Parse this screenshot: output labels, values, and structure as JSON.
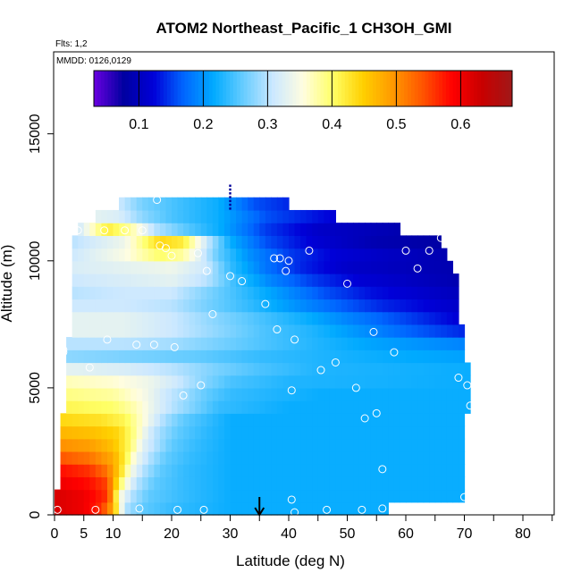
{
  "chart_data": {
    "type": "heatmap",
    "title": "ATOM2 Northeast_Pacific_1 CH3OH_GMI",
    "subtitle": "Flts: 1,2",
    "annotation": "MMDD: 0126,0129",
    "xlabel": "Latitude (deg N)",
    "ylabel": "Altitude (m)",
    "xlim": [
      0,
      85
    ],
    "ylim": [
      0,
      17500
    ],
    "x_ticks": [
      0,
      5,
      10,
      20,
      30,
      40,
      50,
      60,
      70,
      80
    ],
    "x_minor_ticks": [
      15,
      25,
      35,
      45,
      55,
      65,
      75,
      85
    ],
    "y_ticks": [
      0,
      5000,
      10000,
      15000
    ],
    "grid": false,
    "colorbar": {
      "min": 0.03,
      "max": 0.68,
      "ticks": [
        0.1,
        0.2,
        0.3,
        0.4,
        0.5,
        0.6
      ],
      "placement": "top"
    },
    "colormap": [
      "#6a00e0",
      "#0000a0",
      "#0000d8",
      "#0066ff",
      "#00aaff",
      "#66ccff",
      "#cce8ff",
      "#fffde0",
      "#ffff66",
      "#ffd000",
      "#ff9900",
      "#ff5500",
      "#ff0000",
      "#c80000",
      "#a01818"
    ],
    "levels": [
      {
        "alt": 0,
        "x_end": 57,
        "values": [
          [
            0,
            0.62
          ],
          [
            5,
            0.6
          ],
          [
            8,
            0.56
          ],
          [
            10,
            0.48
          ],
          [
            11,
            0.38
          ],
          [
            12,
            0.3
          ],
          [
            15,
            0.26
          ],
          [
            20,
            0.24
          ],
          [
            30,
            0.22
          ],
          [
            40,
            0.22
          ],
          [
            57,
            0.22
          ]
        ]
      },
      {
        "alt": 500,
        "x_end": 70,
        "values": [
          [
            0,
            0.62
          ],
          [
            5,
            0.6
          ],
          [
            9,
            0.56
          ],
          [
            10,
            0.48
          ],
          [
            11,
            0.36
          ],
          [
            13,
            0.3
          ],
          [
            16,
            0.26
          ],
          [
            22,
            0.24
          ],
          [
            30,
            0.22
          ],
          [
            70,
            0.22
          ]
        ]
      },
      {
        "alt": 1000,
        "x_end": 70,
        "values": [
          [
            1,
            0.6
          ],
          [
            6,
            0.58
          ],
          [
            9,
            0.55
          ],
          [
            10,
            0.48
          ],
          [
            12,
            0.36
          ],
          [
            14,
            0.3
          ],
          [
            17,
            0.26
          ],
          [
            22,
            0.24
          ],
          [
            30,
            0.22
          ],
          [
            70,
            0.22
          ]
        ]
      },
      {
        "alt": 1500,
        "x_end": 70,
        "values": [
          [
            1,
            0.58
          ],
          [
            6,
            0.56
          ],
          [
            9,
            0.52
          ],
          [
            11,
            0.45
          ],
          [
            13,
            0.35
          ],
          [
            15,
            0.3
          ],
          [
            18,
            0.26
          ],
          [
            22,
            0.24
          ],
          [
            30,
            0.22
          ],
          [
            70,
            0.22
          ]
        ]
      },
      {
        "alt": 2000,
        "x_end": 70,
        "values": [
          [
            1,
            0.54
          ],
          [
            6,
            0.52
          ],
          [
            10,
            0.48
          ],
          [
            12,
            0.42
          ],
          [
            14,
            0.34
          ],
          [
            16,
            0.3
          ],
          [
            19,
            0.26
          ],
          [
            23,
            0.24
          ],
          [
            30,
            0.22
          ],
          [
            70,
            0.22
          ]
        ]
      },
      {
        "alt": 2500,
        "x_end": 70,
        "values": [
          [
            1,
            0.5
          ],
          [
            6,
            0.49
          ],
          [
            10,
            0.46
          ],
          [
            13,
            0.4
          ],
          [
            15,
            0.33
          ],
          [
            17,
            0.3
          ],
          [
            20,
            0.26
          ],
          [
            24,
            0.24
          ],
          [
            30,
            0.22
          ],
          [
            70,
            0.22
          ]
        ]
      },
      {
        "alt": 3000,
        "x_end": 70,
        "values": [
          [
            1,
            0.47
          ],
          [
            7,
            0.46
          ],
          [
            11,
            0.44
          ],
          [
            14,
            0.38
          ],
          [
            16,
            0.32
          ],
          [
            18,
            0.29
          ],
          [
            21,
            0.26
          ],
          [
            25,
            0.24
          ],
          [
            30,
            0.22
          ],
          [
            70,
            0.22
          ]
        ]
      },
      {
        "alt": 3500,
        "x_end": 70,
        "values": [
          [
            1,
            0.44
          ],
          [
            8,
            0.43
          ],
          [
            12,
            0.41
          ],
          [
            15,
            0.36
          ],
          [
            17,
            0.32
          ],
          [
            19,
            0.29
          ],
          [
            22,
            0.26
          ],
          [
            26,
            0.24
          ],
          [
            30,
            0.22
          ],
          [
            70,
            0.22
          ]
        ]
      },
      {
        "alt": 4000,
        "x_end": 71,
        "values": [
          [
            2,
            0.41
          ],
          [
            10,
            0.4
          ],
          [
            14,
            0.37
          ],
          [
            17,
            0.33
          ],
          [
            20,
            0.3
          ],
          [
            24,
            0.27
          ],
          [
            28,
            0.24
          ],
          [
            40,
            0.22
          ],
          [
            71,
            0.22
          ]
        ]
      },
      {
        "alt": 4500,
        "x_end": 71,
        "values": [
          [
            2,
            0.39
          ],
          [
            10,
            0.38
          ],
          [
            15,
            0.35
          ],
          [
            19,
            0.31
          ],
          [
            22,
            0.29
          ],
          [
            26,
            0.26
          ],
          [
            30,
            0.24
          ],
          [
            45,
            0.22
          ],
          [
            71,
            0.22
          ]
        ]
      },
      {
        "alt": 5000,
        "x_end": 71,
        "values": [
          [
            2,
            0.37
          ],
          [
            10,
            0.36
          ],
          [
            16,
            0.34
          ],
          [
            21,
            0.31
          ],
          [
            25,
            0.28
          ],
          [
            30,
            0.25
          ],
          [
            40,
            0.23
          ],
          [
            71,
            0.22
          ]
        ]
      },
      {
        "alt": 5500,
        "x_end": 71,
        "values": [
          [
            2,
            0.33
          ],
          [
            12,
            0.32
          ],
          [
            20,
            0.3
          ],
          [
            28,
            0.27
          ],
          [
            35,
            0.25
          ],
          [
            45,
            0.23
          ],
          [
            71,
            0.22
          ]
        ]
      },
      {
        "alt": 6000,
        "x_end": 70,
        "values": [
          [
            2,
            0.28
          ],
          [
            15,
            0.27
          ],
          [
            25,
            0.26
          ],
          [
            35,
            0.24
          ],
          [
            45,
            0.23
          ],
          [
            55,
            0.22
          ],
          [
            70,
            0.21
          ]
        ]
      },
      {
        "alt": 6500,
        "x_end": 70,
        "values": [
          [
            2,
            0.3
          ],
          [
            12,
            0.3
          ],
          [
            20,
            0.29
          ],
          [
            28,
            0.27
          ],
          [
            36,
            0.25
          ],
          [
            45,
            0.23
          ],
          [
            55,
            0.21
          ],
          [
            70,
            0.19
          ]
        ]
      },
      {
        "alt": 7000,
        "x_end": 70,
        "values": [
          [
            3,
            0.33
          ],
          [
            12,
            0.33
          ],
          [
            20,
            0.31
          ],
          [
            28,
            0.28
          ],
          [
            36,
            0.25
          ],
          [
            44,
            0.23
          ],
          [
            52,
            0.2
          ],
          [
            60,
            0.17
          ],
          [
            70,
            0.14
          ]
        ]
      },
      {
        "alt": 7500,
        "x_end": 69,
        "values": [
          [
            3,
            0.33
          ],
          [
            12,
            0.33
          ],
          [
            20,
            0.31
          ],
          [
            27,
            0.28
          ],
          [
            35,
            0.25
          ],
          [
            43,
            0.22
          ],
          [
            50,
            0.19
          ],
          [
            58,
            0.16
          ],
          [
            69,
            0.12
          ]
        ]
      },
      {
        "alt": 8000,
        "x_end": 69,
        "values": [
          [
            3,
            0.31
          ],
          [
            12,
            0.31
          ],
          [
            20,
            0.3
          ],
          [
            26,
            0.27
          ],
          [
            33,
            0.24
          ],
          [
            41,
            0.2
          ],
          [
            48,
            0.17
          ],
          [
            56,
            0.14
          ],
          [
            69,
            0.11
          ]
        ]
      },
      {
        "alt": 8500,
        "x_end": 69,
        "values": [
          [
            3,
            0.3
          ],
          [
            12,
            0.31
          ],
          [
            20,
            0.31
          ],
          [
            25,
            0.28
          ],
          [
            32,
            0.24
          ],
          [
            39,
            0.2
          ],
          [
            46,
            0.16
          ],
          [
            54,
            0.13
          ],
          [
            69,
            0.1
          ]
        ]
      },
      {
        "alt": 9000,
        "x_end": 69,
        "values": [
          [
            3,
            0.31
          ],
          [
            12,
            0.32
          ],
          [
            20,
            0.33
          ],
          [
            26,
            0.3
          ],
          [
            31,
            0.24
          ],
          [
            37,
            0.19
          ],
          [
            44,
            0.15
          ],
          [
            52,
            0.12
          ],
          [
            69,
            0.09
          ]
        ]
      },
      {
        "alt": 9500,
        "x_end": 68,
        "values": [
          [
            3,
            0.32
          ],
          [
            12,
            0.33
          ],
          [
            20,
            0.34
          ],
          [
            26,
            0.31
          ],
          [
            30,
            0.24
          ],
          [
            36,
            0.18
          ],
          [
            42,
            0.14
          ],
          [
            50,
            0.11
          ],
          [
            68,
            0.09
          ]
        ]
      },
      {
        "alt": 10000,
        "x_end": 67,
        "values": [
          [
            3,
            0.31
          ],
          [
            12,
            0.35
          ],
          [
            18,
            0.4
          ],
          [
            22,
            0.38
          ],
          [
            28,
            0.26
          ],
          [
            33,
            0.2
          ],
          [
            40,
            0.15
          ],
          [
            48,
            0.12
          ],
          [
            67,
            0.09
          ]
        ]
      },
      {
        "alt": 10500,
        "x_end": 66,
        "values": [
          [
            3,
            0.3
          ],
          [
            12,
            0.34
          ],
          [
            18,
            0.44
          ],
          [
            22,
            0.42
          ],
          [
            26,
            0.31
          ],
          [
            30,
            0.22
          ],
          [
            36,
            0.16
          ],
          [
            44,
            0.12
          ],
          [
            55,
            0.09
          ],
          [
            66,
            0.08
          ]
        ]
      },
      {
        "alt": 11000,
        "x_end": 59,
        "values": [
          [
            4,
            0.31
          ],
          [
            9,
            0.42
          ],
          [
            13,
            0.38
          ],
          [
            17,
            0.3
          ],
          [
            22,
            0.26
          ],
          [
            28,
            0.22
          ],
          [
            36,
            0.15
          ],
          [
            45,
            0.11
          ],
          [
            59,
            0.09
          ]
        ]
      },
      {
        "alt": 11500,
        "x_end": 48,
        "values": [
          [
            7,
            0.33
          ],
          [
            11,
            0.32
          ],
          [
            15,
            0.28
          ],
          [
            20,
            0.25
          ],
          [
            28,
            0.22
          ],
          [
            36,
            0.16
          ],
          [
            48,
            0.12
          ]
        ]
      },
      {
        "alt": 12000,
        "x_end": 40,
        "values": [
          [
            11,
            0.31
          ],
          [
            15,
            0.27
          ],
          [
            20,
            0.25
          ],
          [
            28,
            0.22
          ],
          [
            34,
            0.16
          ],
          [
            40,
            0.14
          ]
        ]
      }
    ],
    "points": [
      [
        0.5,
        200
      ],
      [
        7,
        200
      ],
      [
        14.5,
        250
      ],
      [
        21,
        200
      ],
      [
        25.5,
        200
      ],
      [
        41,
        100
      ],
      [
        46.5,
        200
      ],
      [
        52.5,
        200
      ],
      [
        56,
        250
      ],
      [
        40.5,
        600
      ],
      [
        70,
        700
      ],
      [
        56,
        1800
      ],
      [
        53,
        3800
      ],
      [
        55,
        4000
      ],
      [
        71,
        4300
      ],
      [
        22,
        4700
      ],
      [
        25,
        5100
      ],
      [
        40.5,
        4900
      ],
      [
        51.5,
        5000
      ],
      [
        6,
        5800
      ],
      [
        45.5,
        5700
      ],
      [
        48,
        6000
      ],
      [
        69,
        5400
      ],
      [
        70.5,
        5100
      ],
      [
        1.5,
        6400
      ],
      [
        1.5,
        6500
      ],
      [
        9,
        6900
      ],
      [
        14,
        6700
      ],
      [
        17,
        6700
      ],
      [
        20.5,
        6600
      ],
      [
        41,
        6900
      ],
      [
        38,
        7300
      ],
      [
        54.5,
        7200
      ],
      [
        58,
        6400
      ],
      [
        27,
        7900
      ],
      [
        36,
        8300
      ],
      [
        30,
        9400
      ],
      [
        32,
        9200
      ],
      [
        39.5,
        9600
      ],
      [
        50,
        9100
      ],
      [
        26,
        9600
      ],
      [
        20,
        10200
      ],
      [
        24.5,
        10300
      ],
      [
        37.5,
        10100
      ],
      [
        38.5,
        10100
      ],
      [
        40,
        10000
      ],
      [
        43.5,
        10400
      ],
      [
        60,
        10400
      ],
      [
        64,
        10400
      ],
      [
        62,
        9700
      ],
      [
        18,
        10600
      ],
      [
        19,
        10500
      ],
      [
        4,
        11200
      ],
      [
        8.5,
        11200
      ],
      [
        12,
        11200
      ],
      [
        15,
        11200
      ],
      [
        17.5,
        12400
      ],
      [
        66,
        10900
      ]
    ],
    "arrow_x": 35,
    "flight_marks": {
      "x": 30,
      "alt_from": 12000,
      "alt_to": 13000
    }
  }
}
